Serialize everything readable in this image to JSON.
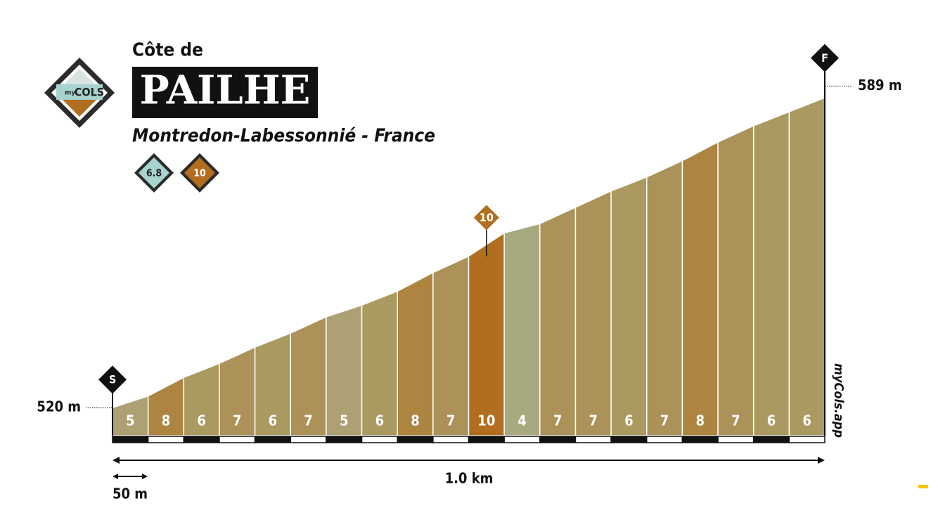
{
  "chart_data": {
    "type": "climb-profile",
    "subtitle_top": "Côte de",
    "title": "PAILHE",
    "location": "Montredon-Labessonnié - France",
    "difficulty": 6.8,
    "max_gradient": 10,
    "start_marker": "S",
    "finish_marker": "F",
    "gradients": [
      5,
      8,
      6,
      7,
      6,
      7,
      5,
      6,
      8,
      7,
      10,
      4,
      7,
      7,
      6,
      7,
      8,
      7,
      6,
      6
    ],
    "colors": [
      "#aca074",
      "#ae8540",
      "#ab9a60",
      "#ac9158",
      "#ab9a60",
      "#ac9158",
      "#aca074",
      "#ab9a60",
      "#ae8540",
      "#ac9158",
      "#b06e1e",
      "#a9a97f",
      "#ac9158",
      "#ac9158",
      "#ab9a60",
      "#ac9158",
      "#ae8540",
      "#ac9158",
      "#ab9a60",
      "#ab9a60"
    ],
    "segment_length_m": 50,
    "start_elevation": 520,
    "end_elevation": 589,
    "value_labels": {
      "start_elevation": "520 m",
      "end_elevation": "589 m"
    },
    "ylim": [
      514,
      590
    ],
    "total_distance": "1.0 km",
    "segment_distance": "50 m",
    "logo_small": "my",
    "logo_big": "COLS",
    "watermark": "myCols.app"
  }
}
